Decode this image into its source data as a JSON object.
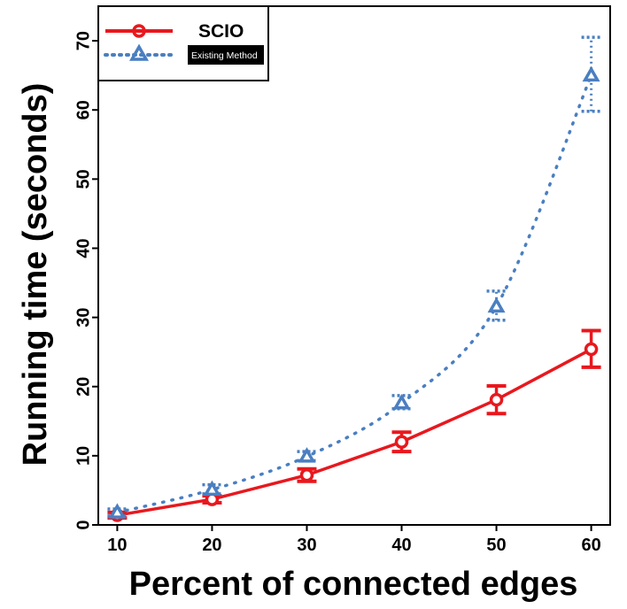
{
  "chart_data": {
    "type": "line",
    "title": "",
    "xlabel": "Percent of connected edges",
    "ylabel": "Running time (seconds)",
    "x": [
      10,
      20,
      30,
      40,
      50,
      60
    ],
    "xlim": [
      8,
      62
    ],
    "ylim": [
      0,
      75
    ],
    "x_ticks": [
      "10",
      "20",
      "30",
      "40",
      "50",
      "60"
    ],
    "y_ticks": [
      "0",
      "10",
      "20",
      "30",
      "40",
      "50",
      "60",
      "70"
    ],
    "grid": false,
    "legend_position": "top-left",
    "series": [
      {
        "name": "SCIO",
        "style": "solid",
        "marker": "circle",
        "color": "#e8181e",
        "values": [
          1.4,
          3.7,
          7.2,
          12.0,
          18.1,
          25.4
        ],
        "error_low": [
          1.0,
          3.2,
          6.3,
          10.6,
          16.1,
          22.8
        ],
        "error_high": [
          1.8,
          4.2,
          8.1,
          13.4,
          20.1,
          28.1
        ]
      },
      {
        "name": "Existing Method",
        "style": "dotted",
        "marker": "triangle",
        "color": "#4a7fc1",
        "values": [
          1.8,
          5.1,
          9.9,
          17.6,
          31.6,
          65.0
        ],
        "error_low": [
          1.3,
          4.5,
          9.3,
          16.8,
          29.6,
          59.8
        ],
        "error_high": [
          2.3,
          5.8,
          10.6,
          18.7,
          33.8,
          70.5
        ]
      }
    ]
  }
}
